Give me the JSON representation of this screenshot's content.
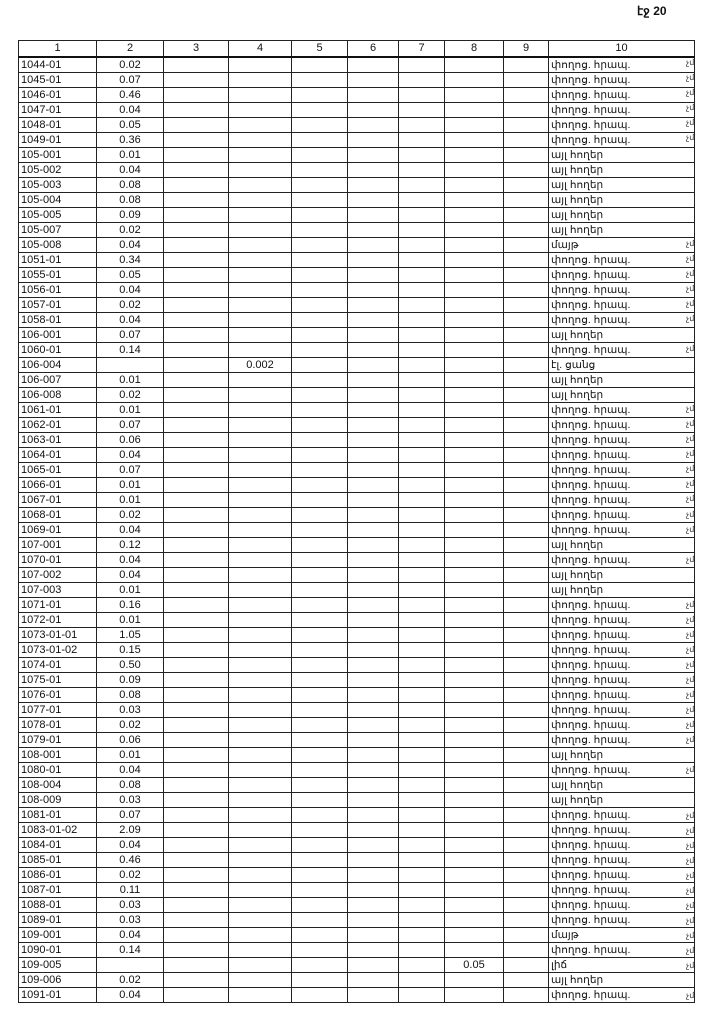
{
  "page_number": "էջ 20",
  "margin_mark": "չմ",
  "table": {
    "headers": [
      "1",
      "2",
      "3",
      "4",
      "5",
      "6",
      "7",
      "8",
      "9",
      "10"
    ],
    "rows": [
      {
        "id": "1044-01",
        "c2": "0.02",
        "c10": "փողոց. հրապ.",
        "mark": true
      },
      {
        "id": "1045-01",
        "c2": "0.07",
        "c10": "փողոց. հրապ.",
        "mark": true
      },
      {
        "id": "1046-01",
        "c2": "0.46",
        "c10": "փողոց. հրապ.",
        "mark": true
      },
      {
        "id": "1047-01",
        "c2": "0.04",
        "c10": "փողոց. հրապ.",
        "mark": true
      },
      {
        "id": "1048-01",
        "c2": "0.05",
        "c10": "փողոց. հրապ.",
        "mark": true
      },
      {
        "id": "1049-01",
        "c2": "0.36",
        "c10": "փողոց. հրապ.",
        "mark": true
      },
      {
        "id": "105-001",
        "c2": "0.01",
        "c10": "այլ հողեր"
      },
      {
        "id": "105-002",
        "c2": "0.04",
        "c10": "այլ հողեր"
      },
      {
        "id": "105-003",
        "c2": "0.08",
        "c10": "այլ հողեր"
      },
      {
        "id": "105-004",
        "c2": "0.08",
        "c10": "այլ հողեր"
      },
      {
        "id": "105-005",
        "c2": "0.09",
        "c10": "այլ հողեր"
      },
      {
        "id": "105-007",
        "c2": "0.02",
        "c10": "այլ հողեր"
      },
      {
        "id": "105-008",
        "c2": "0.04",
        "c10": "մայթ",
        "mark": true
      },
      {
        "id": "1051-01",
        "c2": "0.34",
        "c10": "փողոց. հրապ.",
        "mark": true
      },
      {
        "id": "1055-01",
        "c2": "0.05",
        "c10": "փողոց. հրապ.",
        "mark": true
      },
      {
        "id": "1056-01",
        "c2": "0.04",
        "c10": "փողոց. հրապ.",
        "mark": true
      },
      {
        "id": "1057-01",
        "c2": "0.02",
        "c10": "փողոց. հրապ.",
        "mark": true
      },
      {
        "id": "1058-01",
        "c2": "0.04",
        "c10": "փողոց. հրապ.",
        "mark": true
      },
      {
        "id": "106-001",
        "c2": "0.07",
        "c10": "այլ հողեր"
      },
      {
        "id": "1060-01",
        "c2": "0.14",
        "c10": "փողոց. հրապ.",
        "mark": true
      },
      {
        "id": "106-004",
        "c2": "",
        "c4": "0.002",
        "c10": "էլ. ցանց"
      },
      {
        "id": "106-007",
        "c2": "0.01",
        "c10": "այլ հողեր"
      },
      {
        "id": "106-008",
        "c2": "0.02",
        "c10": "այլ հողեր"
      },
      {
        "id": "1061-01",
        "c2": "0.01",
        "c10": "փողոց. հրապ.",
        "mark": true
      },
      {
        "id": "1062-01",
        "c2": "0.07",
        "c10": "փողոց. հրապ.",
        "mark": true
      },
      {
        "id": "1063-01",
        "c2": "0.06",
        "c10": "փողոց. հրապ.",
        "mark": true
      },
      {
        "id": "1064-01",
        "c2": "0.04",
        "c10": "փողոց. հրապ.",
        "mark": true
      },
      {
        "id": "1065-01",
        "c2": "0.07",
        "c10": "փողոց. հրապ.",
        "mark": true
      },
      {
        "id": "1066-01",
        "c2": "0.01",
        "c10": "փողոց. հրապ.",
        "mark": true
      },
      {
        "id": "1067-01",
        "c2": "0.01",
        "c10": "փողոց. հրապ.",
        "mark": true
      },
      {
        "id": "1068-01",
        "c2": "0.02",
        "c10": "փողոց. հրապ.",
        "mark": true
      },
      {
        "id": "1069-01",
        "c2": "0.04",
        "c10": "փողոց. հրապ.",
        "mark": true
      },
      {
        "id": "107-001",
        "c2": "0.12",
        "c10": "այլ հողեր"
      },
      {
        "id": "1070-01",
        "c2": "0.04",
        "c10": "փողոց. հրապ.",
        "mark": true
      },
      {
        "id": "107-002",
        "c2": "0.04",
        "c10": "այլ հողեր"
      },
      {
        "id": "107-003",
        "c2": "0.01",
        "c10": "այլ հողեր"
      },
      {
        "id": "1071-01",
        "c2": "0.16",
        "c10": "փողոց. հրապ.",
        "mark": true
      },
      {
        "id": "1072-01",
        "c2": "0.01",
        "c10": "փողոց. հրապ.",
        "mark": true
      },
      {
        "id": "1073-01-01",
        "c2": "1.05",
        "c10": "փողոց. հրապ.",
        "mark": true
      },
      {
        "id": "1073-01-02",
        "c2": "0.15",
        "c10": "փողոց. հրապ.",
        "mark": true
      },
      {
        "id": "1074-01",
        "c2": "0.50",
        "c10": "փողոց. հրապ.",
        "mark": true
      },
      {
        "id": "1075-01",
        "c2": "0.09",
        "c10": "փողոց. հրապ.",
        "mark": true
      },
      {
        "id": "1076-01",
        "c2": "0.08",
        "c10": "փողոց. հրապ.",
        "mark": true
      },
      {
        "id": "1077-01",
        "c2": "0.03",
        "c10": "փողոց. հրապ.",
        "mark": true
      },
      {
        "id": "1078-01",
        "c2": "0.02",
        "c10": "փողոց. հրապ.",
        "mark": true
      },
      {
        "id": "1079-01",
        "c2": "0.06",
        "c10": "փողոց. հրապ.",
        "mark": true
      },
      {
        "id": "108-001",
        "c2": "0.01",
        "c10": "այլ հողեր"
      },
      {
        "id": "1080-01",
        "c2": "0.04",
        "c10": "փողոց. հրապ.",
        "mark": true
      },
      {
        "id": "108-004",
        "c2": "0.08",
        "c10": "այլ հողեր"
      },
      {
        "id": "108-009",
        "c2": "0.03",
        "c10": "այլ հողեր"
      },
      {
        "id": "1081-01",
        "c2": "0.07",
        "c10": "փողոց. հրապ.",
        "mark": true
      },
      {
        "id": "1083-01-02",
        "c2": "2.09",
        "c10": "փողոց. հրապ.",
        "mark": true
      },
      {
        "id": "1084-01",
        "c2": "0.04",
        "c10": "փողոց. հրապ.",
        "mark": true
      },
      {
        "id": "1085-01",
        "c2": "0.46",
        "c10": "փողոց. հրապ.",
        "mark": true
      },
      {
        "id": "1086-01",
        "c2": "0.02",
        "c10": "փողոց. հրապ.",
        "mark": true
      },
      {
        "id": "1087-01",
        "c2": "0.11",
        "c10": "փողոց. հրապ.",
        "mark": true
      },
      {
        "id": "1088-01",
        "c2": "0.03",
        "c10": "փողոց. հրապ.",
        "mark": true
      },
      {
        "id": "1089-01",
        "c2": "0.03",
        "c10": "փողոց. հրապ.",
        "mark": true
      },
      {
        "id": "109-001",
        "c2": "0.04",
        "c10": "մայթ",
        "mark": true
      },
      {
        "id": "1090-01",
        "c2": "0.14",
        "c10": "փողոց. հրապ.",
        "mark": true
      },
      {
        "id": "109-005",
        "c2": "",
        "c8": "0.05",
        "c10": "լիճ",
        "mark": true
      },
      {
        "id": "109-006",
        "c2": "0.02",
        "c10": "այլ հողեր"
      },
      {
        "id": "1091-01",
        "c2": "0.04",
        "c10": "փողոց. հրապ.",
        "mark": true
      }
    ]
  }
}
